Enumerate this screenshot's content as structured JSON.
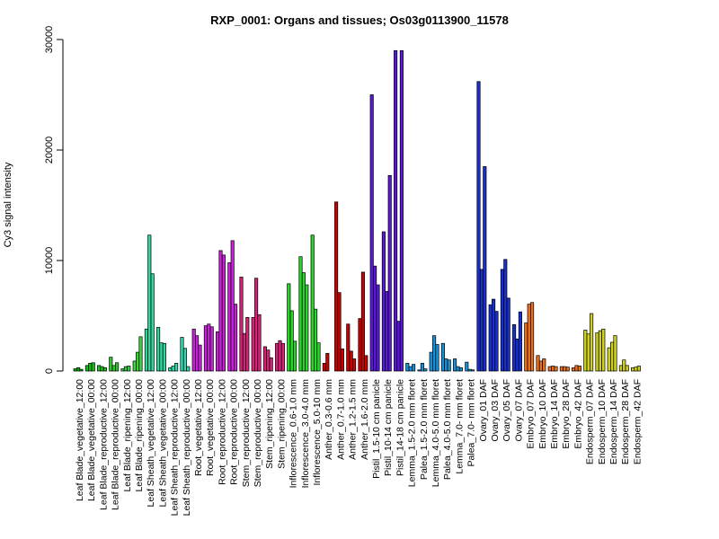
{
  "chart_data": {
    "type": "bar",
    "title": "RXP_0001: Organs and tissues; Os03g0113900_11578",
    "ylabel": "Cy3 signal intensity",
    "xlabel": "",
    "ylim": [
      0,
      30000
    ],
    "yticks": [
      0,
      10000,
      20000,
      30000
    ],
    "grid": false,
    "legend": "none",
    "groups": [
      {
        "label": "Leaf Blade_vegetative_12:00",
        "color": "#00b000",
        "values": [
          200,
          300,
          150
        ]
      },
      {
        "label": "Leaf Blade_vegetative_00:00",
        "color": "#10be10",
        "values": [
          500,
          700,
          750
        ]
      },
      {
        "label": "Leaf Blade_reproductive_12:00",
        "color": "#20c420",
        "values": [
          500,
          400,
          300
        ]
      },
      {
        "label": "Leaf Blade_reproductive_00:00",
        "color": "#30c830",
        "values": [
          1250,
          500,
          750
        ]
      },
      {
        "label": "Leaf Blade_ripening_12:00",
        "color": "#30cc40",
        "values": [
          200,
          400,
          450
        ]
      },
      {
        "label": "Leaf Blade_ripening_00:00",
        "color": "#40d040",
        "values": [
          900,
          1700,
          3100
        ]
      },
      {
        "label": "Leaf Sheath_vegetative_12:00",
        "color": "#2fd89a",
        "values": [
          3800,
          12300,
          8800
        ]
      },
      {
        "label": "Leaf Sheath_vegetative_00:00",
        "color": "#2fd8a0",
        "values": [
          3950,
          2550,
          2500
        ]
      },
      {
        "label": "Leaf Sheath_reproductive_12:00",
        "color": "#2fd8a8",
        "values": [
          300,
          450,
          700
        ]
      },
      {
        "label": "Leaf Sheath_reproductive_00:00",
        "color": "#2fd8b0",
        "values": [
          3050,
          2050,
          400
        ]
      },
      {
        "label": "Root_vegetative_12:00",
        "color": "#c822d8",
        "values": [
          3800,
          3200,
          2350
        ]
      },
      {
        "label": "Root_vegetative_00:00",
        "color": "#c822d8",
        "values": [
          4100,
          4250,
          4000
        ]
      },
      {
        "label": "Root_reproductive_12:00",
        "color": "#c822d8",
        "values": [
          3550,
          10900,
          10500
        ]
      },
      {
        "label": "Root_reproductive_00:00",
        "color": "#c822d8",
        "values": [
          9800,
          11800,
          6050
        ]
      },
      {
        "label": "Stem_reproductive_12:00",
        "color": "#d8227a",
        "values": [
          8500,
          3400,
          4850
        ]
      },
      {
        "label": "Stem_reproductive_00:00",
        "color": "#d8227a",
        "values": [
          4850,
          8400,
          5100
        ]
      },
      {
        "label": "Stem_ripening_12:00",
        "color": "#d8227a",
        "values": [
          2200,
          1900,
          1200
        ]
      },
      {
        "label": "Stem_ripening_00:00",
        "color": "#d8227a",
        "values": [
          2500,
          2750,
          2500
        ]
      },
      {
        "label": "Inflorescence_0.6-1.0 mm",
        "color": "#28d828",
        "values": [
          7900,
          5450,
          2700
        ]
      },
      {
        "label": "Inflorescence_3.0-4.0 mm",
        "color": "#28d828",
        "values": [
          10350,
          8900,
          7800
        ]
      },
      {
        "label": "Inflorescence_5.0-10 mm",
        "color": "#28d828",
        "values": [
          12300,
          5600,
          2550
        ]
      },
      {
        "label": "Anther_0.3-0.6 mm",
        "color": "#c80000",
        "values": [
          700,
          1600
        ]
      },
      {
        "label": "Anther_0.7-1.0 mm",
        "color": "#c80000",
        "values": [
          15300,
          7100,
          2000
        ]
      },
      {
        "label": "Anther_1.2-1.5 mm",
        "color": "#c80000",
        "values": [
          4250,
          1800,
          1100
        ]
      },
      {
        "label": "Anther_1.6-2.0 mm",
        "color": "#c80000",
        "values": [
          4750,
          8950,
          1400
        ]
      },
      {
        "label": "Pistil_1.5-10 cm panicle",
        "color": "#5a18d8",
        "values": [
          25000,
          9500,
          7800
        ]
      },
      {
        "label": "Pistil_10-14 cm panicle",
        "color": "#5a18d8",
        "values": [
          12600,
          7200,
          17700
        ]
      },
      {
        "label": "Pistil_14-18 cm panicle",
        "color": "#5a18d8",
        "values": [
          29000,
          4500,
          29000
        ]
      },
      {
        "label": "Lemma_1.5-2.0 mm floret",
        "color": "#1890d8",
        "values": [
          700,
          400,
          600
        ]
      },
      {
        "label": "Palea_1.5-2.0 mm floret",
        "color": "#1890d8",
        "values": [
          100,
          700,
          200
        ]
      },
      {
        "label": "Lemma_4.0-5.0 mm floret",
        "color": "#1890d8",
        "values": [
          1700,
          3200,
          2400
        ]
      },
      {
        "label": "Palea_4.0-5.0 mm floret",
        "color": "#1890d8",
        "values": [
          2500,
          1100,
          1000
        ]
      },
      {
        "label": "Lemma_7.0- mm floret",
        "color": "#1890d8",
        "values": [
          1100,
          400,
          300
        ]
      },
      {
        "label": "Palea_7.0- mm floret",
        "color": "#1890d8",
        "values": [
          800,
          150,
          100
        ]
      },
      {
        "label": "Ovary_01 DAF",
        "color": "#1830d0",
        "values": [
          26200,
          9200,
          18500
        ]
      },
      {
        "label": "Ovary_03 DAF",
        "color": "#1830d0",
        "values": [
          6000,
          6500,
          5400
        ]
      },
      {
        "label": "Ovary_05 DAF",
        "color": "#1830d0",
        "values": [
          9200,
          10100,
          6600
        ]
      },
      {
        "label": "Ovary_07 DAF",
        "color": "#1830d0",
        "values": [
          4200,
          2900,
          5350
        ]
      },
      {
        "label": "Embryo_07 DAF",
        "color": "#e87020",
        "values": [
          4350,
          6050,
          6200
        ]
      },
      {
        "label": "Embryo_10 DAF",
        "color": "#e87020",
        "values": [
          1400,
          900,
          1100
        ]
      },
      {
        "label": "Embryo_14 DAF",
        "color": "#e87020",
        "values": [
          400,
          450,
          400
        ]
      },
      {
        "label": "Embryo_28 DAF",
        "color": "#e87020",
        "values": [
          400,
          400,
          350
        ]
      },
      {
        "label": "Embryo_42 DAF",
        "color": "#e87020",
        "values": [
          300,
          500,
          450
        ]
      },
      {
        "label": "Endosperm_07 DAF",
        "color": "#d0d020",
        "values": [
          3700,
          3350,
          5200
        ]
      },
      {
        "label": "Endosperm_10 DAF",
        "color": "#d0d020",
        "values": [
          3450,
          3650,
          3800
        ]
      },
      {
        "label": "Endosperm_14 DAF",
        "color": "#d0d020",
        "values": [
          2100,
          2600,
          3200
        ]
      },
      {
        "label": "Endosperm_28 DAF",
        "color": "#d0d020",
        "values": [
          500,
          1000,
          500
        ]
      },
      {
        "label": "Endosperm_42 DAF",
        "color": "#d0d020",
        "values": [
          300,
          350,
          450
        ]
      }
    ]
  }
}
